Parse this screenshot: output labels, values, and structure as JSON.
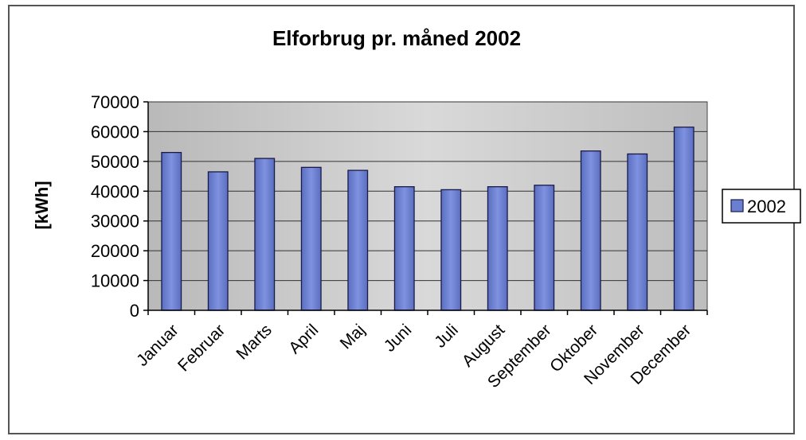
{
  "chart_data": {
    "type": "bar",
    "title": "Elforbrug pr. måned 2002",
    "xlabel": "",
    "ylabel": "[kWh]",
    "ylim": [
      0,
      70000
    ],
    "yticks": [
      0,
      10000,
      20000,
      30000,
      40000,
      50000,
      60000,
      70000
    ],
    "categories": [
      "Januar",
      "Februar",
      "Marts",
      "April",
      "Maj",
      "Juni",
      "Juli",
      "August",
      "September",
      "Oktober",
      "November",
      "December"
    ],
    "series": [
      {
        "name": "2002",
        "values": [
          53000,
          46500,
          51000,
          48000,
          47000,
          41500,
          40500,
          41500,
          42000,
          53500,
          52500,
          61500
        ]
      }
    ],
    "grid": true,
    "legend_position": "right",
    "colors": {
      "bar_fill": "#6b7fd0",
      "bar_stroke": "#1a1a4a",
      "plot_background": "#c8c8c8",
      "gridline": "#333333"
    }
  }
}
